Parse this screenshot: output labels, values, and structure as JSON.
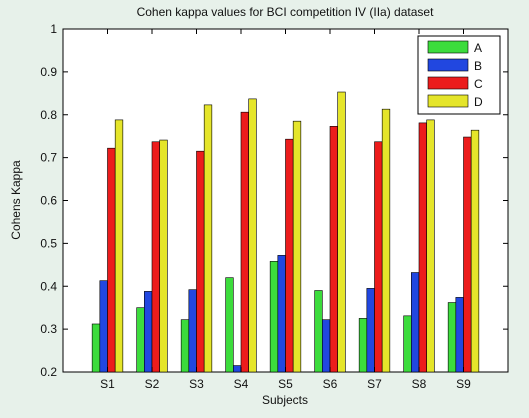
{
  "chart_data": {
    "type": "bar",
    "title": "Cohen kappa values for BCI competition IV (IIa) dataset",
    "xlabel": "Subjects",
    "ylabel": "Cohens Kappa",
    "categories": [
      "S1",
      "S2",
      "S3",
      "S4",
      "S5",
      "S6",
      "S7",
      "S8",
      "S9"
    ],
    "yticks": [
      "0.2",
      "0.3",
      "0.4",
      "0.5",
      "0.6",
      "0.7",
      "0.8",
      "0.9",
      "1"
    ],
    "ylim": [
      0.2,
      1.0
    ],
    "grid": false,
    "legend": "top-right",
    "series": [
      {
        "name": "A",
        "color": "#3cdc3c",
        "values": [
          0.312,
          0.35,
          0.322,
          0.42,
          0.458,
          0.39,
          0.325,
          0.331,
          0.362
        ]
      },
      {
        "name": "B",
        "color": "#2147e0",
        "values": [
          0.413,
          0.388,
          0.392,
          0.215,
          0.472,
          0.322,
          0.395,
          0.432,
          0.374
        ]
      },
      {
        "name": "C",
        "color": "#ec1c1c",
        "values": [
          0.722,
          0.737,
          0.715,
          0.806,
          0.743,
          0.773,
          0.737,
          0.781,
          0.748
        ]
      },
      {
        "name": "D",
        "color": "#e5e52a",
        "values": [
          0.788,
          0.741,
          0.823,
          0.837,
          0.785,
          0.853,
          0.813,
          0.788,
          0.764
        ]
      }
    ]
  }
}
